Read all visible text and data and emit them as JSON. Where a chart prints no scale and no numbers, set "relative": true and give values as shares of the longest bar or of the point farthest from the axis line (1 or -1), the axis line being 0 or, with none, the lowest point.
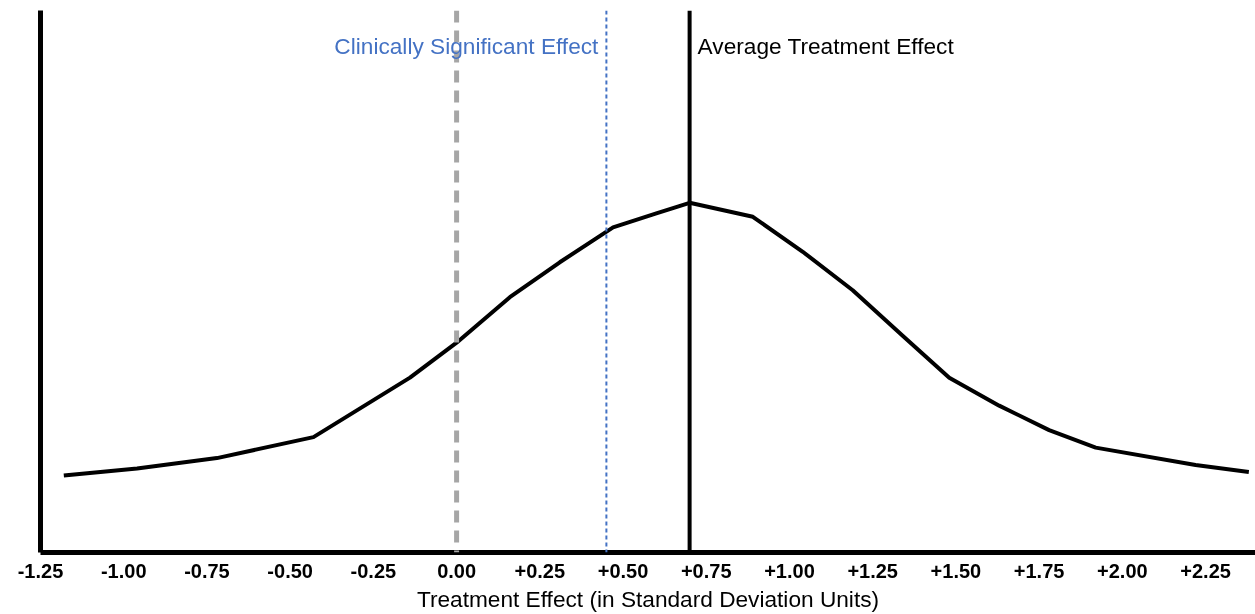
{
  "chart_data": {
    "type": "line",
    "relative": true,
    "xlabel": "Treatment Effect (in Standard Deviation Units)",
    "x": [
      -1.18,
      -0.96,
      -0.72,
      -0.43,
      -0.14,
      0.0,
      0.16,
      0.31,
      0.47,
      0.6,
      0.7,
      0.89,
      1.04,
      1.19,
      1.34,
      1.48,
      1.63,
      1.78,
      1.92,
      2.22,
      2.38
    ],
    "series": [
      {
        "color": "#000000",
        "values": [
          0.22,
          0.24,
          0.27,
          0.33,
          0.5,
          0.6,
          0.73,
          0.83,
          0.93,
          0.97,
          1,
          0.96,
          0.86,
          0.75,
          0.62,
          0.5,
          0.42,
          0.35,
          0.3,
          0.25,
          0.23
        ]
      }
    ],
    "xlim": [
      -1.25,
      2.4
    ],
    "xticks": [
      {
        "value": -1.25,
        "label": "-1.25"
      },
      {
        "value": -1.0,
        "label": "-1.00"
      },
      {
        "value": -0.75,
        "label": "-0.75"
      },
      {
        "value": -0.5,
        "label": "-0.50"
      },
      {
        "value": -0.25,
        "label": "-0.25"
      },
      {
        "value": 0,
        "label": "0.00"
      },
      {
        "value": 0.25,
        "label": "+0.25"
      },
      {
        "value": 0.5,
        "label": "+0.50"
      },
      {
        "value": 0.75,
        "label": "+0.75"
      },
      {
        "value": 1.0,
        "label": "+1.00"
      },
      {
        "value": 1.25,
        "label": "+1.25"
      },
      {
        "value": 1.5,
        "label": "+1.50"
      },
      {
        "value": 1.75,
        "label": "+1.75"
      },
      {
        "value": 2.0,
        "label": "+2.00"
      },
      {
        "value": 2.25,
        "label": "+2.25"
      }
    ],
    "ref_lines": [
      {
        "axis": "x",
        "value": 0,
        "color": "#a6a6a6",
        "line_style": "dashed"
      },
      {
        "axis": "x",
        "value": 0.45,
        "label": "Clinically Significant Effect",
        "color": "#4472c4",
        "line_style": "dotted"
      },
      {
        "axis": "x",
        "value": 0.7,
        "label": "Average Treatment Effect",
        "color": "#000000",
        "line_style": "solid"
      }
    ],
    "grid": false,
    "marker": "none",
    "line_style": "solid"
  }
}
